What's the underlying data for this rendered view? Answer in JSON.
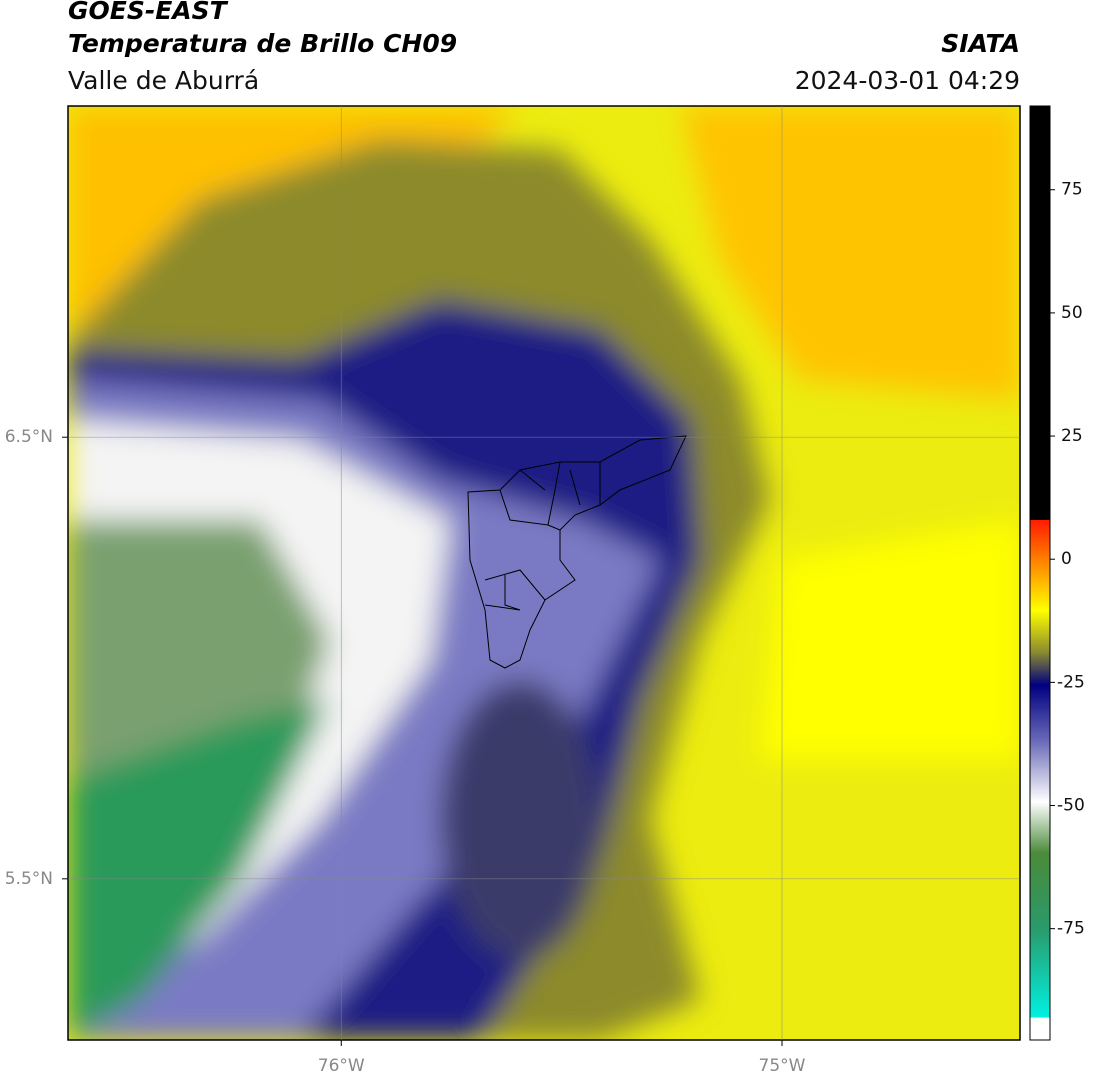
{
  "header": {
    "title": "GOES-EAST",
    "subtitle": "Temperatura de Brillo CH09",
    "region": "Valle de Aburrá",
    "source": "SIATA",
    "datetime": "2024-03-01 04:29"
  },
  "map": {
    "xlim": [
      -76.62,
      -74.46
    ],
    "ylim": [
      5.135,
      7.25
    ],
    "xticks": [
      {
        "value": -76,
        "label": "76°W"
      },
      {
        "value": -75,
        "label": "75°W"
      }
    ],
    "yticks": [
      {
        "value": 6.5,
        "label": "6.5°N"
      },
      {
        "value": 5.5,
        "label": "5.5°N"
      }
    ],
    "grid": true
  },
  "colorbar": {
    "lim": [
      -97.6,
      92
    ],
    "ticks": [
      75,
      50,
      25,
      0,
      -25,
      -50,
      -75
    ]
  }
}
